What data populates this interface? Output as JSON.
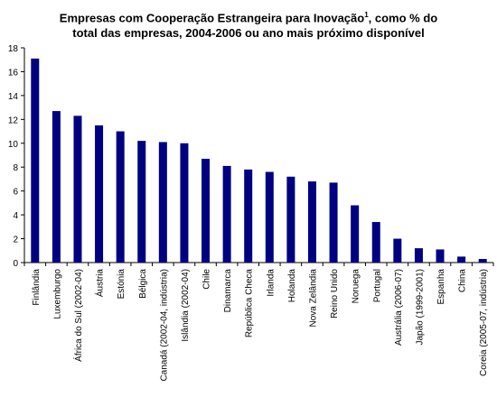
{
  "chart_data": {
    "type": "bar",
    "title_line1": "Empresas com Cooperação Estrangeira para Inovação",
    "title_footnote_mark": "1",
    "title_line1_rest": ", como % do",
    "title_line2": "total das empresas, 2004-2006 ou ano mais próximo disponível",
    "xlabel": "",
    "ylabel": "",
    "ylim": [
      0,
      18
    ],
    "yticks": [
      "0",
      "2",
      "4",
      "6",
      "8",
      "10",
      "12",
      "14",
      "16",
      "18"
    ],
    "grid": false,
    "legend": false,
    "bar_color": "#000080",
    "categories": [
      "Finlândia",
      "Luxemburgo",
      "África do Sul (2002-04)",
      "Áustria",
      "Estónia",
      "Bélgica",
      "Canadá (2002-04, indústria)",
      "Islândia (2002-04)",
      "Chile",
      "Dinamarca",
      "República Checa",
      "Irlanda",
      "Holanda",
      "Nova Zelândia",
      "Reino Unido",
      "Noruega",
      "Portugal",
      "Austrália (2006-07)",
      "Japão (1999-2001)",
      "Espanha",
      "China",
      "Coreia (2005-07, indústria)"
    ],
    "values": [
      17.1,
      12.7,
      12.3,
      11.5,
      11.0,
      10.2,
      10.1,
      10.0,
      8.7,
      8.1,
      7.8,
      7.6,
      7.2,
      6.8,
      6.7,
      4.8,
      3.4,
      2.0,
      1.2,
      1.1,
      0.5,
      0.3
    ]
  }
}
